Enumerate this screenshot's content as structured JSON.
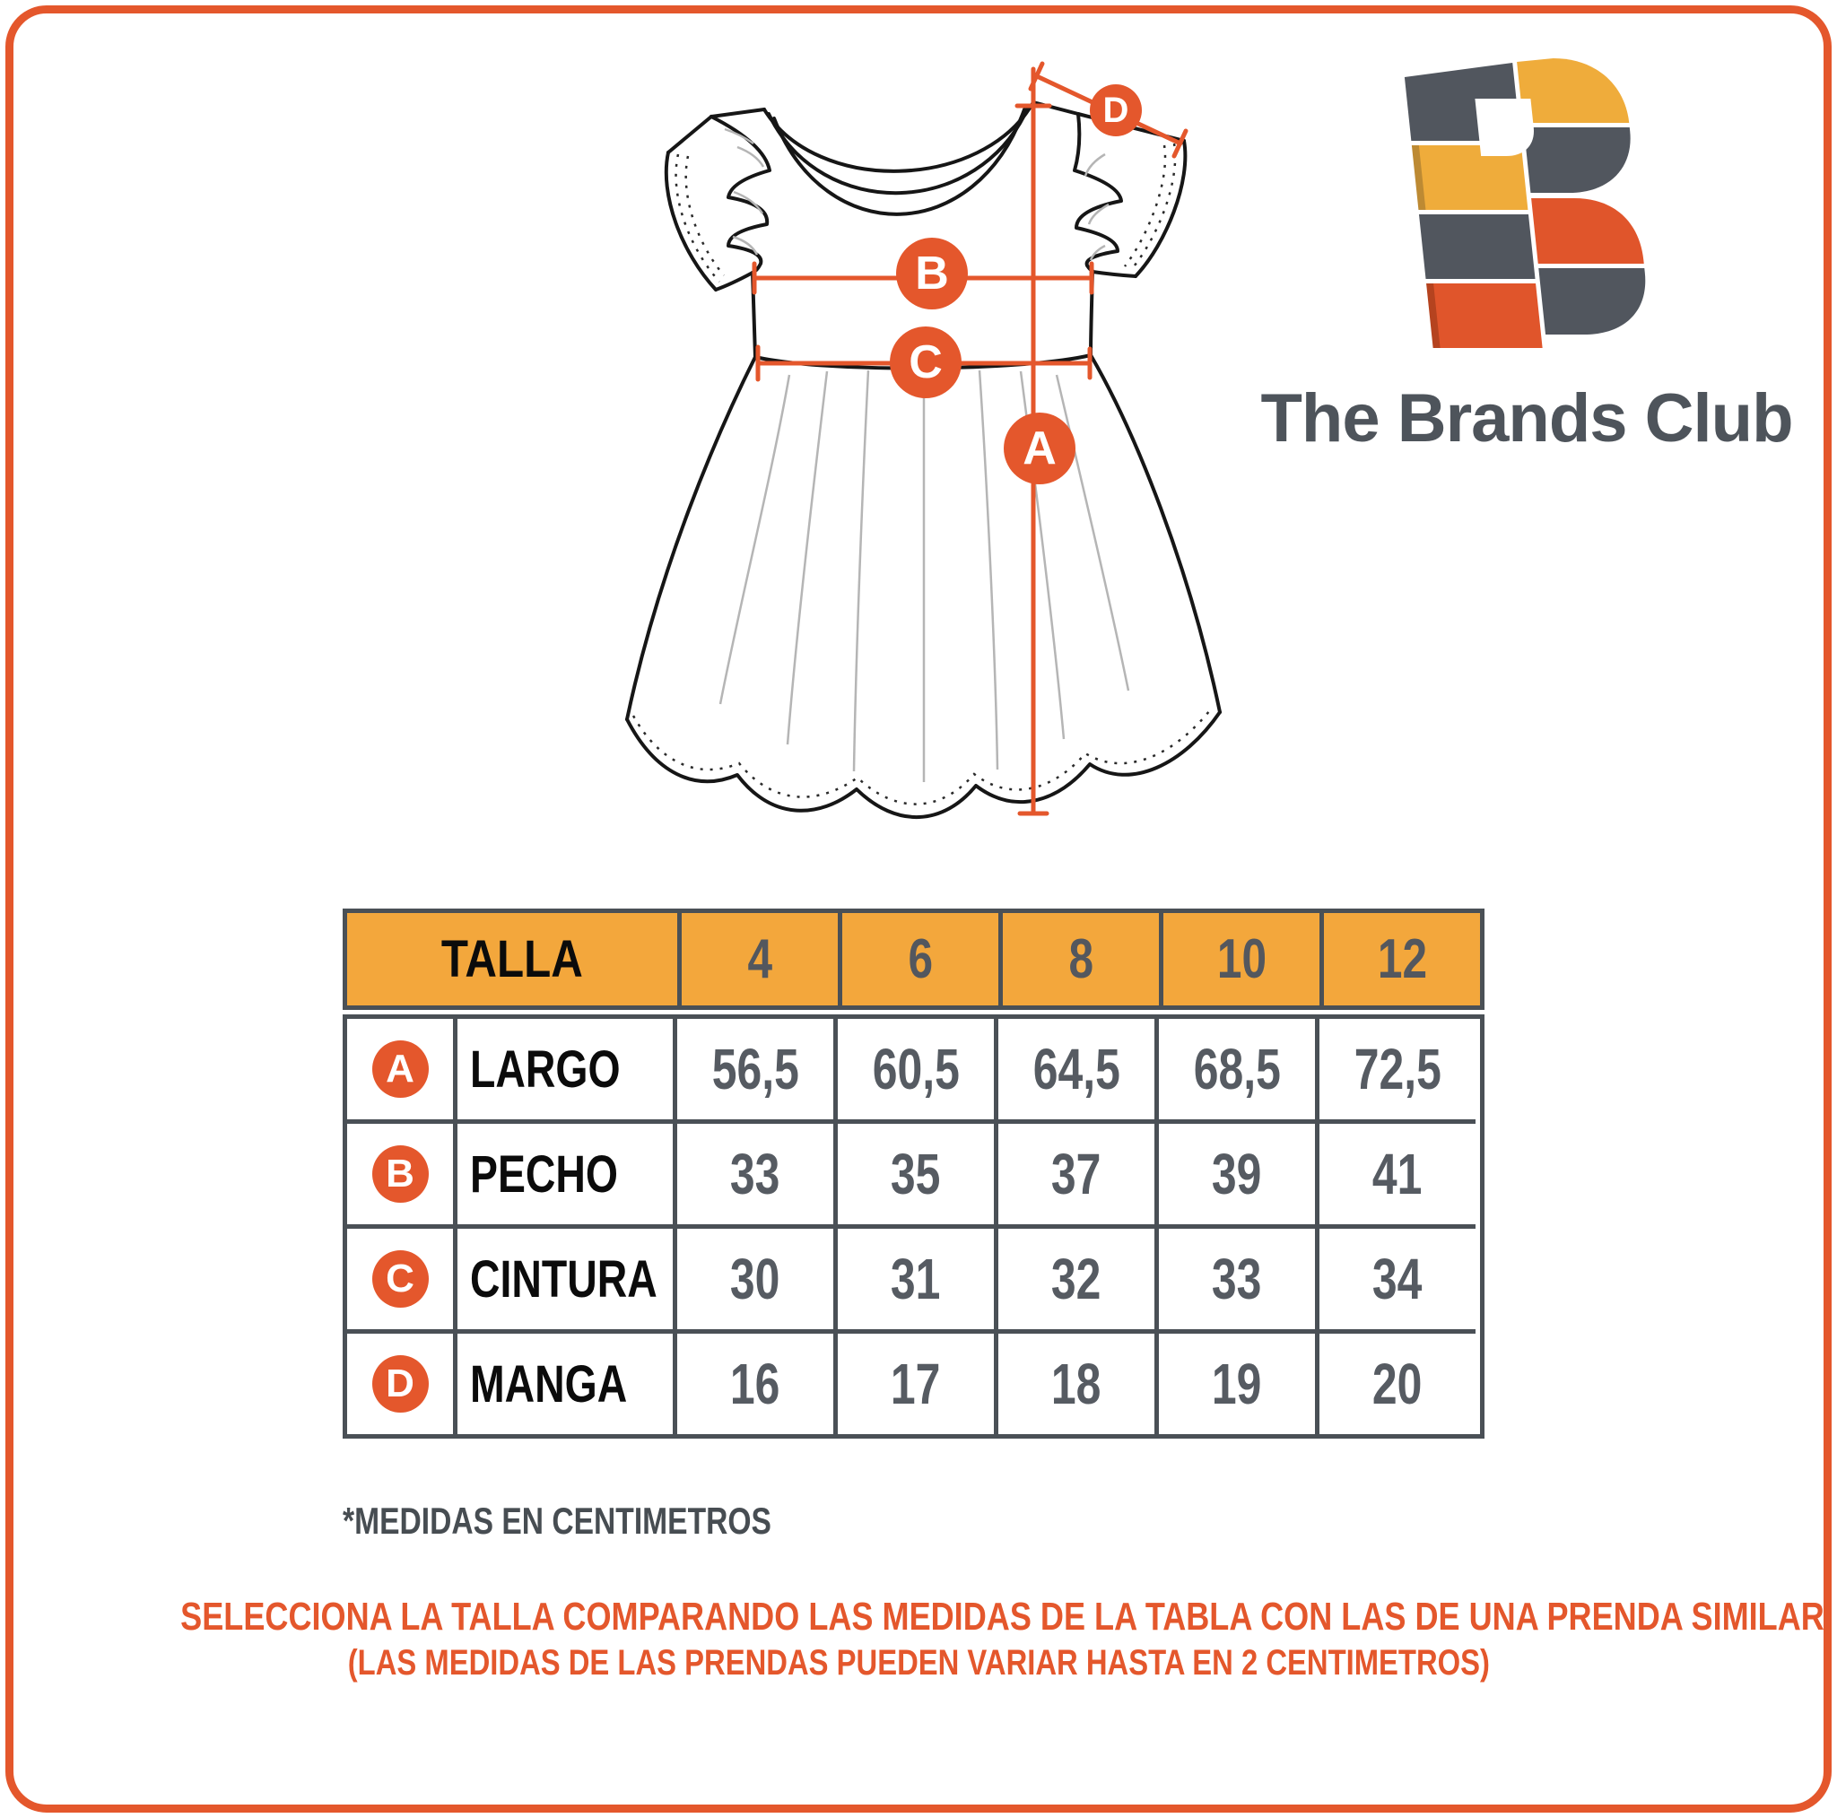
{
  "brand": {
    "name": "The Brands Club"
  },
  "colors": {
    "accent_orange": "#E4572C",
    "header_yellow": "#F3A73C",
    "table_border": "#4A5056",
    "value_gray": "#565B62",
    "logo_dark_gray": "#51565E",
    "logo_yellow": "#EFAC3B",
    "logo_orange": "#E0552B"
  },
  "diagram": {
    "garment": "girls dress technical sketch",
    "markers": [
      "A",
      "B",
      "C",
      "D"
    ]
  },
  "size_table": {
    "header": {
      "label": "TALLA",
      "sizes": [
        "4",
        "6",
        "8",
        "10",
        "12"
      ]
    },
    "rows": [
      {
        "letter": "A",
        "label": "LARGO",
        "values": [
          "56,5",
          "60,5",
          "64,5",
          "68,5",
          "72,5"
        ]
      },
      {
        "letter": "B",
        "label": "PECHO",
        "values": [
          "33",
          "35",
          "37",
          "39",
          "41"
        ]
      },
      {
        "letter": "C",
        "label": "CINTURA",
        "values": [
          "30",
          "31",
          "32",
          "33",
          "34"
        ]
      },
      {
        "letter": "D",
        "label": "MANGA",
        "values": [
          "16",
          "17",
          "18",
          "19",
          "20"
        ]
      }
    ]
  },
  "notes": {
    "units_note": "*MEDIDAS EN CENTIMETROS",
    "instruction_line1": "SELECCIONA LA TALLA COMPARANDO LAS MEDIDAS DE LA TABLA CON LAS DE UNA PRENDA SIMILAR",
    "instruction_line2": "(LAS MEDIDAS DE LAS PRENDAS PUEDEN VARIAR HASTA EN 2 CENTIMETROS)"
  },
  "chart_data": {
    "type": "table",
    "title": "TALLA",
    "columns": [
      "4",
      "6",
      "8",
      "10",
      "12"
    ],
    "rows": [
      {
        "label": "LARGO",
        "values": [
          56.5,
          60.5,
          64.5,
          68.5,
          72.5
        ]
      },
      {
        "label": "PECHO",
        "values": [
          33,
          35,
          37,
          39,
          41
        ]
      },
      {
        "label": "CINTURA",
        "values": [
          30,
          31,
          32,
          33,
          34
        ]
      },
      {
        "label": "MANGA",
        "values": [
          16,
          17,
          18,
          19,
          20
        ]
      }
    ],
    "units": "centimeters"
  }
}
